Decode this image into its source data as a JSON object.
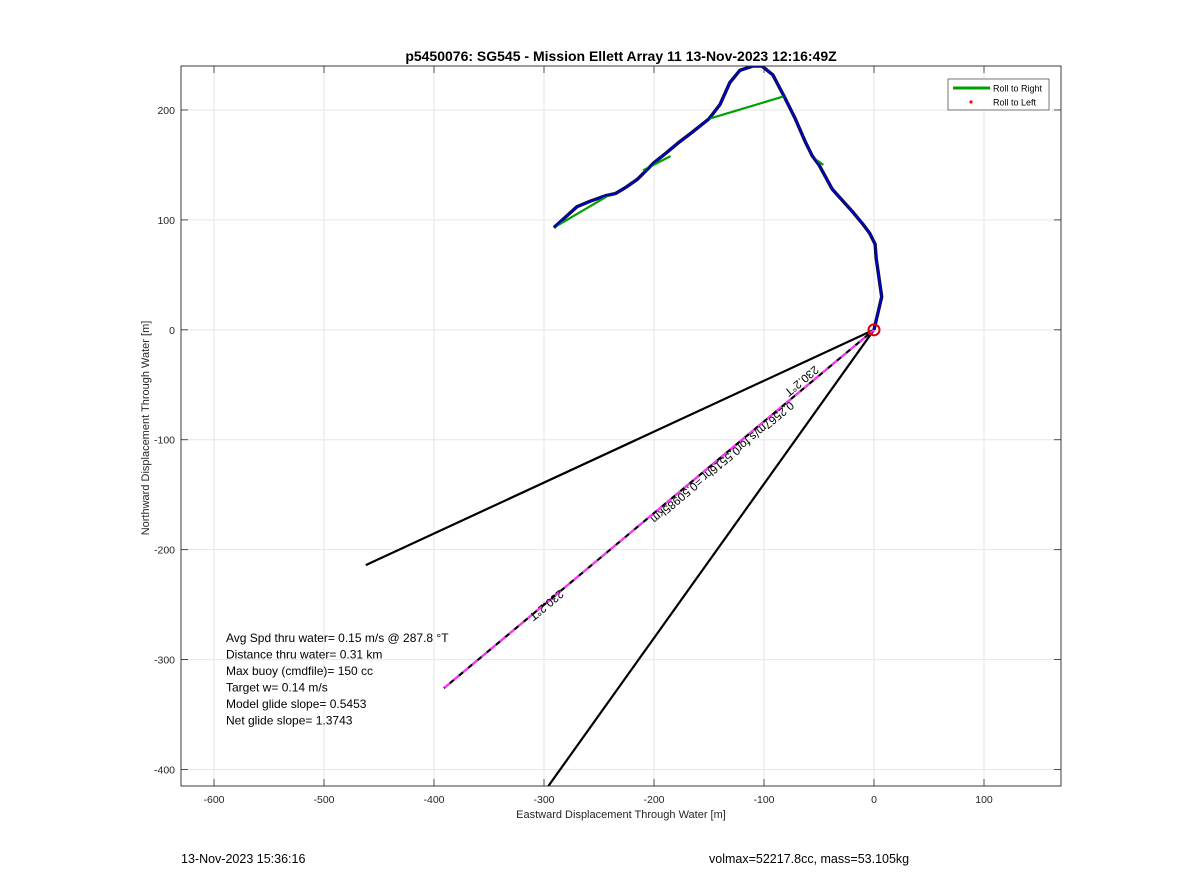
{
  "chart_data": {
    "type": "line",
    "title": "p5450076: SG545 - Mission Ellett Array 11 13-Nov-2023 12:16:49Z",
    "xlabel": "Eastward Displacement Through Water [m]",
    "ylabel": "Northward Displacement Through Water [m]",
    "xlim": [
      -630,
      170
    ],
    "ylim": [
      -415,
      240
    ],
    "xticks": [
      -600,
      -500,
      -400,
      -300,
      -200,
      -100,
      0,
      100
    ],
    "yticks": [
      -400,
      -300,
      -200,
      -100,
      0,
      100,
      200
    ],
    "grid": true,
    "legend": {
      "position": "top-right",
      "entries": [
        {
          "label": "Roll to Right",
          "color": "#00a000",
          "marker": "line"
        },
        {
          "label": "Roll to Left",
          "color": "#ff0000",
          "marker": "dot"
        }
      ]
    },
    "track": {
      "color": "#0000cc",
      "x": [
        0,
        7,
        2,
        1,
        -4,
        -10,
        -20,
        -38,
        -50,
        -56,
        -62,
        -72,
        -82,
        -92,
        -102,
        -110,
        -122,
        -131,
        -140,
        -150,
        -165,
        -178,
        -190,
        -200,
        -205,
        -215,
        -225,
        -235,
        -244,
        -258,
        -270,
        -280,
        -291
      ],
      "y": [
        0,
        30,
        65,
        78,
        88,
        96,
        108,
        128,
        150,
        158,
        170,
        193,
        213,
        232,
        240,
        240,
        236,
        225,
        205,
        192,
        180,
        170,
        160,
        152,
        147,
        137,
        130,
        124,
        122,
        117,
        112,
        103,
        93
      ]
    },
    "roll_right_segments": [
      {
        "x": [
          -291,
          -240
        ],
        "y": [
          93,
          123
        ]
      },
      {
        "x": [
          -210,
          -185
        ],
        "y": [
          145,
          158
        ]
      },
      {
        "x": [
          -150,
          -80
        ],
        "y": [
          192,
          213
        ]
      },
      {
        "x": [
          -56,
          -46
        ],
        "y": [
          157,
          150
        ]
      }
    ],
    "start_marker": {
      "x": 0,
      "y": 0,
      "color": "#dd0000"
    },
    "lines": [
      {
        "x": [
          0,
          -462
        ],
        "y": [
          0,
          -214
        ],
        "color": "#000000"
      },
      {
        "x": [
          0,
          -296
        ],
        "y": [
          0,
          -415
        ],
        "color": "#000000"
      },
      {
        "x": [
          0,
          -391
        ],
        "y": [
          0,
          -326
        ],
        "color": "#000000",
        "dash_color": "#ff33ff"
      }
    ],
    "annotations": [
      {
        "text": "230.2°T",
        "x": -68,
        "y": -44,
        "angle": -40
      },
      {
        "text": "0.2567m/s for0.5516hr =0.50985km",
        "x": -140,
        "y": -118,
        "angle": -40
      },
      {
        "text": "230.2°T",
        "x": -300,
        "y": -248,
        "angle": -40
      }
    ],
    "info_text": [
      "Avg Spd thru water=  0.15 m/s @ 287.8 °T",
      "Distance thru water=  0.31 km",
      "Max buoy (cmdfile)= 150 cc",
      "Target w= 0.14 m/s",
      "Model glide slope= 0.5453",
      "Net glide slope= 1.3743"
    ]
  },
  "footer": {
    "timestamp": "13-Nov-2023 15:36:16",
    "vehicle_info": "volmax=52217.8cc, mass=53.105kg"
  }
}
